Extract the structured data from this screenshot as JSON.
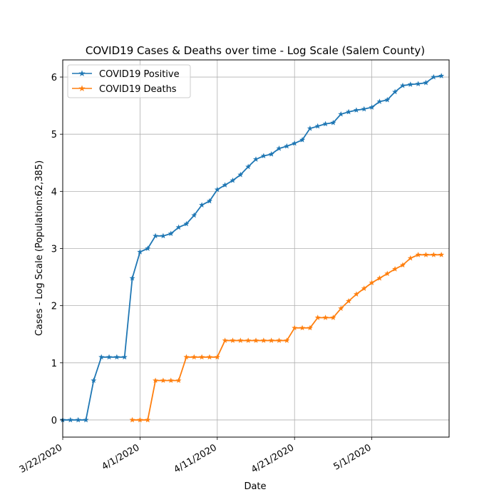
{
  "chart_data": {
    "type": "line",
    "title": "COVID19 Cases & Deaths over time - Log Scale (Salem County)",
    "xlabel": "Date",
    "ylabel": "Cases - Log Scale (Population:62,385)",
    "xlim": [
      "3/22/2020",
      "5/11/2020"
    ],
    "ylim": [
      -0.3,
      6.3
    ],
    "x_ticks": [
      "3/22/2020",
      "4/1/2020",
      "4/11/2020",
      "4/21/2020",
      "5/1/2020"
    ],
    "y_ticks": [
      "0",
      "1",
      "2",
      "3",
      "4",
      "5",
      "6"
    ],
    "grid": true,
    "legend_position": "upper-left",
    "colors": {
      "positive": "#1f77b4",
      "deaths": "#ff7f0e",
      "grid": "#b0b0b0"
    },
    "series": [
      {
        "name": "COVID19 Positive",
        "marker": "star",
        "points": [
          [
            "3/22/2020",
            0
          ],
          [
            "3/23/2020",
            0
          ],
          [
            "3/24/2020",
            0
          ],
          [
            "3/25/2020",
            0
          ],
          [
            "3/26/2020",
            0.69
          ],
          [
            "3/27/2020",
            1.1
          ],
          [
            "3/28/2020",
            1.1
          ],
          [
            "3/29/2020",
            1.1
          ],
          [
            "3/30/2020",
            1.1
          ],
          [
            "3/31/2020",
            2.48
          ],
          [
            "4/1/2020",
            2.94
          ],
          [
            "4/2/2020",
            3.0
          ],
          [
            "4/3/2020",
            3.22
          ],
          [
            "4/4/2020",
            3.22
          ],
          [
            "4/5/2020",
            3.26
          ],
          [
            "4/6/2020",
            3.37
          ],
          [
            "4/7/2020",
            3.43
          ],
          [
            "4/8/2020",
            3.58
          ],
          [
            "4/9/2020",
            3.76
          ],
          [
            "4/10/2020",
            3.83
          ],
          [
            "4/11/2020",
            4.03
          ],
          [
            "4/12/2020",
            4.11
          ],
          [
            "4/13/2020",
            4.19
          ],
          [
            "4/14/2020",
            4.29
          ],
          [
            "4/15/2020",
            4.43
          ],
          [
            "4/16/2020",
            4.56
          ],
          [
            "4/17/2020",
            4.62
          ],
          [
            "4/18/2020",
            4.65
          ],
          [
            "4/19/2020",
            4.75
          ],
          [
            "4/20/2020",
            4.79
          ],
          [
            "4/21/2020",
            4.84
          ],
          [
            "4/22/2020",
            4.9
          ],
          [
            "4/23/2020",
            5.1
          ],
          [
            "4/24/2020",
            5.14
          ],
          [
            "4/25/2020",
            5.18
          ],
          [
            "4/26/2020",
            5.2
          ],
          [
            "4/27/2020",
            5.35
          ],
          [
            "4/28/2020",
            5.39
          ],
          [
            "4/29/2020",
            5.42
          ],
          [
            "4/30/2020",
            5.44
          ],
          [
            "5/1/2020",
            5.47
          ],
          [
            "5/2/2020",
            5.57
          ],
          [
            "5/3/2020",
            5.6
          ],
          [
            "5/4/2020",
            5.74
          ],
          [
            "5/5/2020",
            5.85
          ],
          [
            "5/6/2020",
            5.87
          ],
          [
            "5/7/2020",
            5.88
          ],
          [
            "5/8/2020",
            5.9
          ],
          [
            "5/9/2020",
            6.0
          ],
          [
            "5/10/2020",
            6.02
          ]
        ]
      },
      {
        "name": "COVID19 Deaths",
        "marker": "star",
        "points": [
          [
            "3/31/2020",
            0
          ],
          [
            "4/1/2020",
            0
          ],
          [
            "4/2/2020",
            0
          ],
          [
            "4/3/2020",
            0.69
          ],
          [
            "4/4/2020",
            0.69
          ],
          [
            "4/5/2020",
            0.69
          ],
          [
            "4/6/2020",
            0.69
          ],
          [
            "4/7/2020",
            1.1
          ],
          [
            "4/8/2020",
            1.1
          ],
          [
            "4/9/2020",
            1.1
          ],
          [
            "4/10/2020",
            1.1
          ],
          [
            "4/11/2020",
            1.1
          ],
          [
            "4/12/2020",
            1.39
          ],
          [
            "4/13/2020",
            1.39
          ],
          [
            "4/14/2020",
            1.39
          ],
          [
            "4/15/2020",
            1.39
          ],
          [
            "4/16/2020",
            1.39
          ],
          [
            "4/17/2020",
            1.39
          ],
          [
            "4/18/2020",
            1.39
          ],
          [
            "4/19/2020",
            1.39
          ],
          [
            "4/20/2020",
            1.39
          ],
          [
            "4/21/2020",
            1.61
          ],
          [
            "4/22/2020",
            1.61
          ],
          [
            "4/23/2020",
            1.61
          ],
          [
            "4/24/2020",
            1.79
          ],
          [
            "4/25/2020",
            1.79
          ],
          [
            "4/26/2020",
            1.79
          ],
          [
            "4/27/2020",
            1.95
          ],
          [
            "4/28/2020",
            2.08
          ],
          [
            "4/29/2020",
            2.2
          ],
          [
            "4/30/2020",
            2.3
          ],
          [
            "5/1/2020",
            2.4
          ],
          [
            "5/2/2020",
            2.48
          ],
          [
            "5/3/2020",
            2.56
          ],
          [
            "5/4/2020",
            2.64
          ],
          [
            "5/5/2020",
            2.71
          ],
          [
            "5/6/2020",
            2.83
          ],
          [
            "5/7/2020",
            2.89
          ],
          [
            "5/8/2020",
            2.89
          ],
          [
            "5/9/2020",
            2.89
          ],
          [
            "5/10/2020",
            2.89
          ]
        ]
      }
    ]
  }
}
